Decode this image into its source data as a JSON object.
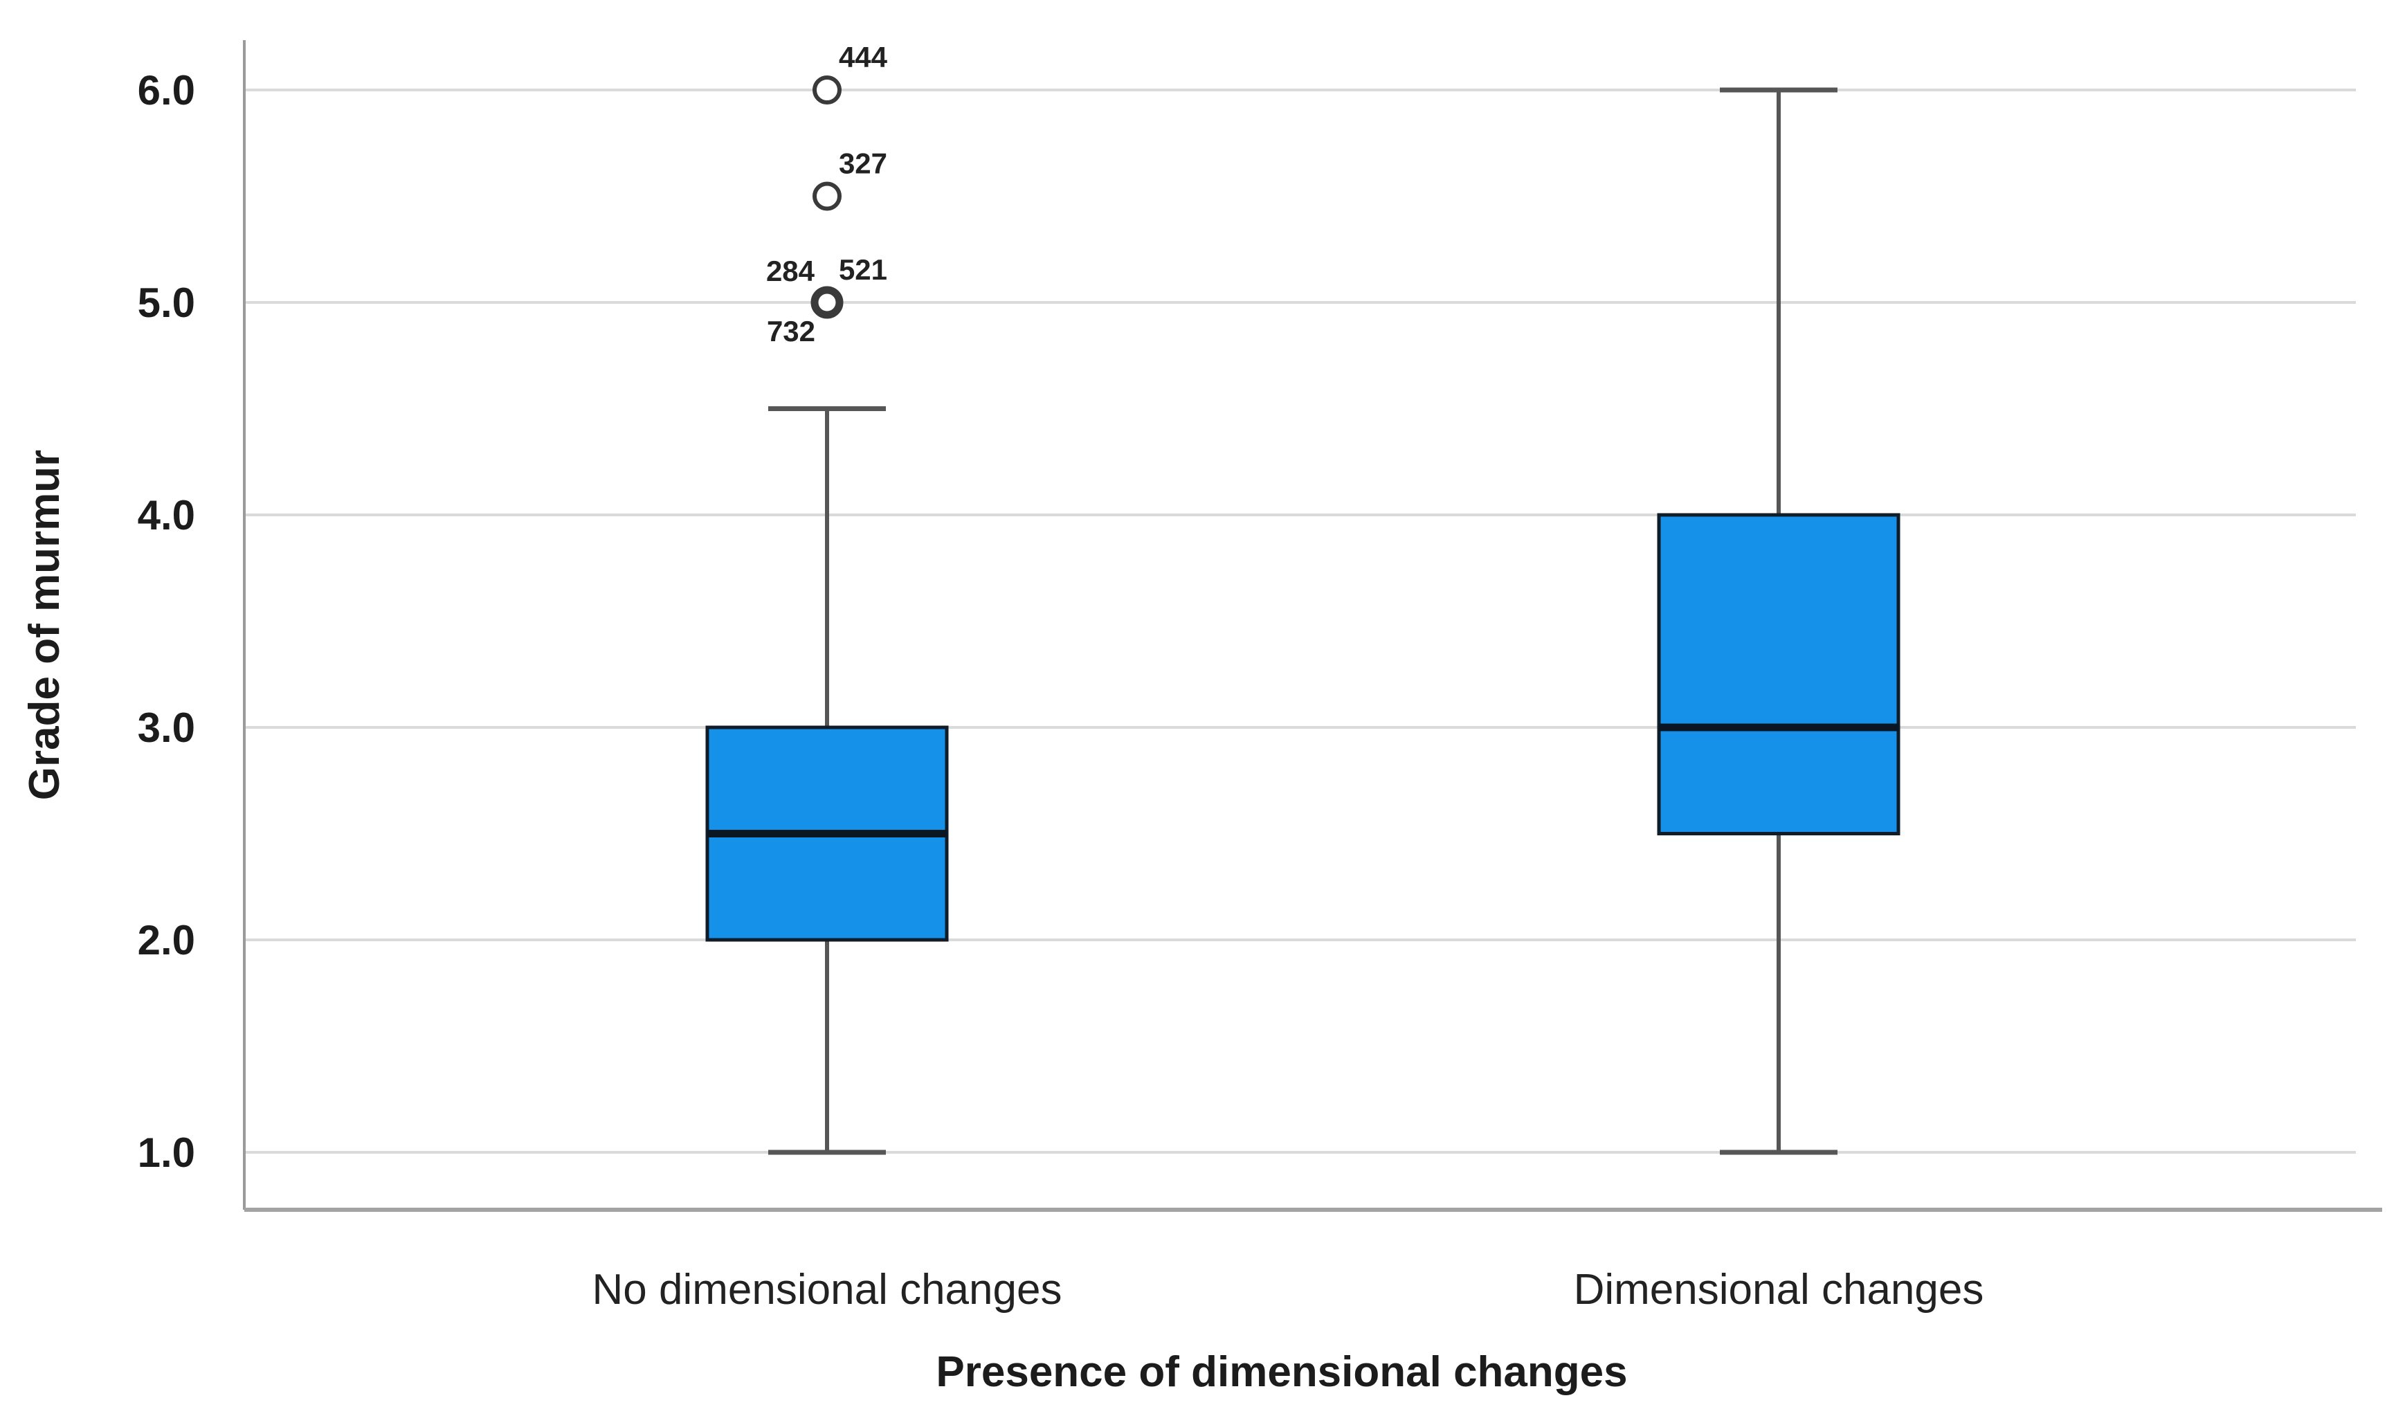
{
  "chart_data": {
    "type": "boxplot",
    "title": "",
    "ylabel": "Grade of murmur",
    "xlabel": "Presence of dimensional changes",
    "categories": [
      "No dimensional changes",
      "Dimensional changes"
    ],
    "yticks": [
      6.0,
      5.0,
      4.0,
      3.0,
      2.0,
      1.0
    ],
    "ytick_labels": [
      "6.0",
      "5.0",
      "4.0",
      "3.0",
      "2.0",
      "1.0"
    ],
    "ylim": [
      0.73,
      6.23
    ],
    "grid": "horizontal",
    "legend": "none",
    "series": [
      {
        "name": "No dimensional changes",
        "q1": 2.0,
        "median": 2.5,
        "q3": 3.0,
        "whisker_low": 1.0,
        "whisker_high": 4.5,
        "outliers": [
          {
            "value": 6.0,
            "emphasis": false,
            "case_labels": [
              {
                "text": "444",
                "pos": "ne"
              }
            ]
          },
          {
            "value": 5.5,
            "emphasis": false,
            "case_labels": [
              {
                "text": "327",
                "pos": "ne"
              }
            ]
          },
          {
            "value": 5.0,
            "emphasis": true,
            "case_labels": [
              {
                "text": "284",
                "pos": "nw"
              },
              {
                "text": "521",
                "pos": "ne"
              },
              {
                "text": "732",
                "pos": "sw"
              }
            ]
          }
        ]
      },
      {
        "name": "Dimensional changes",
        "q1": 2.5,
        "median": 3.0,
        "q3": 4.0,
        "whisker_low": 1.0,
        "whisker_high": 6.0,
        "outliers": []
      }
    ],
    "colors": {
      "box_fill": "#1591E9",
      "box_border": "#101C28",
      "median_line": "#0B1623",
      "whisker": "#565656",
      "gridline": "#DADADA",
      "axis_line": "#9B9B9B",
      "baseline": "#A3A3A3",
      "outlier_stroke": "#3A3A3A",
      "outlier_fill": "#FFFFFF",
      "tick_text": "#1C1C1C",
      "label_text": "#222222"
    }
  }
}
